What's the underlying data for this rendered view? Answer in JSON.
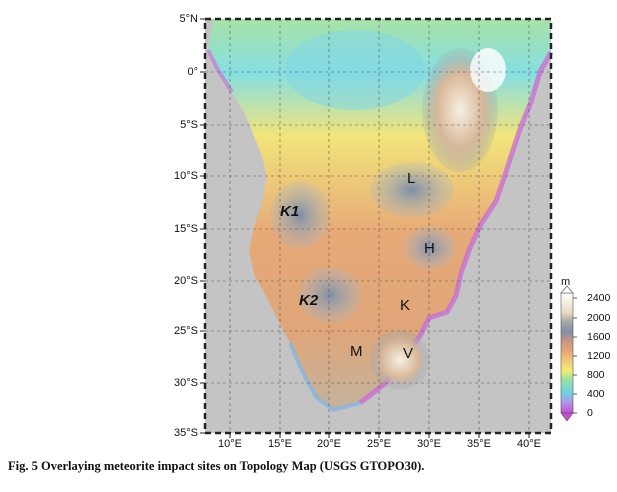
{
  "map": {
    "lat_ticks": [
      "5°N",
      "0°",
      "5°S",
      "10°S",
      "15°S",
      "20°S",
      "25°S",
      "30°S",
      "35°S"
    ],
    "lon_ticks": [
      "10°E",
      "15°E",
      "20°E",
      "25°E",
      "30°E",
      "35°E",
      "40°E"
    ],
    "sites": [
      {
        "label": "K1",
        "style": "bold-italic"
      },
      {
        "label": "L",
        "style": "normal"
      },
      {
        "label": "H",
        "style": "normal"
      },
      {
        "label": "K2",
        "style": "bold-italic"
      },
      {
        "label": "K",
        "style": "normal"
      },
      {
        "label": "M",
        "style": "normal"
      },
      {
        "label": "V",
        "style": "normal"
      }
    ]
  },
  "legend": {
    "unit": "m",
    "ticks": [
      "2400",
      "2000",
      "1600",
      "1200",
      "800",
      "400",
      "0"
    ]
  },
  "caption": "Fig. 5   Overlaying meteorite impact sites on Topology Map (USGS GTOPO30).",
  "colors": {
    "ocean": "#c4c4c4",
    "elev_0": "#d35fd6",
    "elev_400": "#6cd3e0",
    "elev_800": "#f0e86a",
    "elev_1200": "#e8a06a",
    "elev_1600": "#7f8fa6",
    "elev_2000": "#e9dcc2",
    "elev_2400": "#ffffff"
  }
}
